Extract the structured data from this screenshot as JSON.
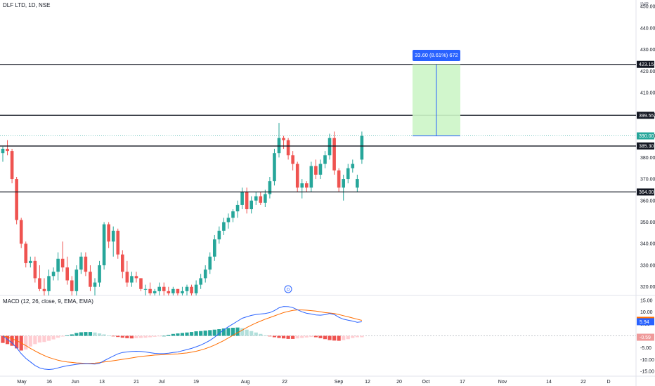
{
  "header": {
    "title": "DLF LTD, 1D, NSE",
    "currency": "INR",
    "macd_title": "MACD (12, 26, close, 9, EMA, EMA)"
  },
  "measure": {
    "label": "33.60 (8.61%) 672",
    "color": "#2962ff",
    "fill": "#ccf5c6",
    "from": 390,
    "to": 423.15
  },
  "colors": {
    "up": "#26a69a",
    "down": "#ef5350",
    "macd": "#2962ff",
    "signal": "#ff6d00",
    "hist_up": "#26a69a",
    "hist_up_light": "#b2dfdb",
    "hist_down": "#ef5350",
    "hist_down_light": "#ffcdd2"
  },
  "chart_data": [
    {
      "type": "candlestick",
      "title": "DLF LTD, 1D, NSE",
      "ylim": [
        316,
        453
      ],
      "y_ticks": [
        320,
        330,
        340,
        350,
        360,
        370,
        380,
        390,
        400,
        410,
        420,
        430,
        440,
        450
      ],
      "x_ticks": [
        "May",
        "16",
        "Jun",
        "13",
        "21",
        "Jul",
        "19",
        "Aug",
        "22",
        "Sep",
        "12",
        "20",
        "Oct",
        "17",
        "Nov",
        "14",
        "22",
        "D"
      ],
      "levels": [
        {
          "value": 423.15,
          "label": "423.15"
        },
        {
          "value": 399.55,
          "label": "399.55"
        },
        {
          "value": 385.3,
          "label": "385.30"
        },
        {
          "value": 364.0,
          "label": "364.00"
        }
      ],
      "last_price": {
        "value": 390.0,
        "label": "390.00"
      },
      "series": [
        {
          "o": 382,
          "h": 385,
          "l": 378,
          "c": 384
        },
        {
          "o": 384,
          "h": 388,
          "l": 381,
          "c": 383
        },
        {
          "o": 383,
          "h": 384,
          "l": 368,
          "c": 370
        },
        {
          "o": 370,
          "h": 371,
          "l": 349,
          "c": 351
        },
        {
          "o": 351,
          "h": 352,
          "l": 338,
          "c": 340
        },
        {
          "o": 340,
          "h": 341,
          "l": 329,
          "c": 331
        },
        {
          "o": 331,
          "h": 334,
          "l": 329,
          "c": 332
        },
        {
          "o": 332,
          "h": 334,
          "l": 322,
          "c": 324
        },
        {
          "o": 324,
          "h": 330,
          "l": 318,
          "c": 319
        },
        {
          "o": 319,
          "h": 324,
          "l": 316,
          "c": 318
        },
        {
          "o": 318,
          "h": 328,
          "l": 316,
          "c": 325
        },
        {
          "o": 325,
          "h": 329,
          "l": 323,
          "c": 327
        },
        {
          "o": 327,
          "h": 336,
          "l": 323,
          "c": 333
        },
        {
          "o": 333,
          "h": 341,
          "l": 327,
          "c": 329
        },
        {
          "o": 329,
          "h": 334,
          "l": 321,
          "c": 323
        },
        {
          "o": 323,
          "h": 325,
          "l": 316,
          "c": 318
        },
        {
          "o": 318,
          "h": 330,
          "l": 316,
          "c": 328
        },
        {
          "o": 328,
          "h": 336,
          "l": 326,
          "c": 334
        },
        {
          "o": 334,
          "h": 336,
          "l": 325,
          "c": 327
        },
        {
          "o": 327,
          "h": 330,
          "l": 318,
          "c": 320
        },
        {
          "o": 320,
          "h": 324,
          "l": 316,
          "c": 322
        },
        {
          "o": 322,
          "h": 332,
          "l": 320,
          "c": 330
        },
        {
          "o": 330,
          "h": 350,
          "l": 328,
          "c": 349
        },
        {
          "o": 349,
          "h": 350,
          "l": 338,
          "c": 341
        },
        {
          "o": 341,
          "h": 348,
          "l": 334,
          "c": 346
        },
        {
          "o": 346,
          "h": 347,
          "l": 333,
          "c": 335
        },
        {
          "o": 335,
          "h": 337,
          "l": 324,
          "c": 327
        },
        {
          "o": 327,
          "h": 332,
          "l": 320,
          "c": 322
        },
        {
          "o": 322,
          "h": 327,
          "l": 320,
          "c": 325
        },
        {
          "o": 325,
          "h": 327,
          "l": 322,
          "c": 324
        },
        {
          "o": 324,
          "h": 324,
          "l": 318,
          "c": 319
        },
        {
          "o": 319,
          "h": 321,
          "l": 316,
          "c": 319
        },
        {
          "o": 319,
          "h": 322,
          "l": 316,
          "c": 317
        },
        {
          "o": 317,
          "h": 319,
          "l": 316,
          "c": 318
        },
        {
          "o": 318,
          "h": 322,
          "l": 316,
          "c": 320
        },
        {
          "o": 320,
          "h": 322,
          "l": 316,
          "c": 318
        },
        {
          "o": 318,
          "h": 320,
          "l": 316,
          "c": 317
        },
        {
          "o": 317,
          "h": 320,
          "l": 316,
          "c": 319
        },
        {
          "o": 319,
          "h": 319,
          "l": 316,
          "c": 317
        },
        {
          "o": 317,
          "h": 320,
          "l": 316,
          "c": 318
        },
        {
          "o": 318,
          "h": 321,
          "l": 316,
          "c": 320
        },
        {
          "o": 320,
          "h": 321,
          "l": 316,
          "c": 317
        },
        {
          "o": 317,
          "h": 323,
          "l": 316,
          "c": 321
        },
        {
          "o": 321,
          "h": 326,
          "l": 319,
          "c": 324
        },
        {
          "o": 324,
          "h": 330,
          "l": 322,
          "c": 328
        },
        {
          "o": 328,
          "h": 336,
          "l": 326,
          "c": 334
        },
        {
          "o": 334,
          "h": 344,
          "l": 332,
          "c": 342
        },
        {
          "o": 342,
          "h": 348,
          "l": 340,
          "c": 346
        },
        {
          "o": 346,
          "h": 352,
          "l": 344,
          "c": 350
        },
        {
          "o": 350,
          "h": 354,
          "l": 347,
          "c": 352
        },
        {
          "o": 352,
          "h": 356,
          "l": 350,
          "c": 355
        },
        {
          "o": 355,
          "h": 360,
          "l": 352,
          "c": 358
        },
        {
          "o": 358,
          "h": 366,
          "l": 356,
          "c": 364
        },
        {
          "o": 364,
          "h": 366,
          "l": 354,
          "c": 356
        },
        {
          "o": 356,
          "h": 362,
          "l": 354,
          "c": 360
        },
        {
          "o": 360,
          "h": 364,
          "l": 358,
          "c": 362
        },
        {
          "o": 362,
          "h": 364,
          "l": 358,
          "c": 359
        },
        {
          "o": 359,
          "h": 365,
          "l": 357,
          "c": 363
        },
        {
          "o": 363,
          "h": 371,
          "l": 361,
          "c": 369
        },
        {
          "o": 369,
          "h": 384,
          "l": 367,
          "c": 382
        },
        {
          "o": 382,
          "h": 396,
          "l": 380,
          "c": 389
        },
        {
          "o": 389,
          "h": 390,
          "l": 384,
          "c": 388
        },
        {
          "o": 388,
          "h": 389,
          "l": 379,
          "c": 381
        },
        {
          "o": 381,
          "h": 383,
          "l": 374,
          "c": 377
        },
        {
          "o": 377,
          "h": 378,
          "l": 364,
          "c": 366
        },
        {
          "o": 366,
          "h": 370,
          "l": 361,
          "c": 368
        },
        {
          "o": 368,
          "h": 369,
          "l": 364,
          "c": 366
        },
        {
          "o": 366,
          "h": 378,
          "l": 364,
          "c": 376
        },
        {
          "o": 376,
          "h": 379,
          "l": 370,
          "c": 372
        },
        {
          "o": 372,
          "h": 379,
          "l": 370,
          "c": 377
        },
        {
          "o": 377,
          "h": 383,
          "l": 375,
          "c": 381
        },
        {
          "o": 381,
          "h": 391,
          "l": 379,
          "c": 389
        },
        {
          "o": 389,
          "h": 392,
          "l": 372,
          "c": 374
        },
        {
          "o": 374,
          "h": 375,
          "l": 364,
          "c": 366
        },
        {
          "o": 366,
          "h": 372,
          "l": 360,
          "c": 370
        },
        {
          "o": 370,
          "h": 377,
          "l": 368,
          "c": 375
        },
        {
          "o": 375,
          "h": 379,
          "l": 373,
          "c": 377
        },
        {
          "o": 366,
          "h": 372,
          "l": 364,
          "c": 370
        },
        {
          "o": 379,
          "h": 392,
          "l": 377,
          "c": 390
        }
      ]
    },
    {
      "type": "macd",
      "title": "MACD (12, 26, close, 9, EMA, EMA)",
      "ylim": [
        -17,
        17
      ],
      "y_ticks": [
        15,
        10,
        5,
        0,
        -5,
        -10,
        -15
      ],
      "value_labels": [
        {
          "value": 6.53,
          "label": "6.53",
          "color": "#ff6d00"
        },
        {
          "value": 5.94,
          "label": "5.94",
          "color": "#2962ff"
        },
        {
          "value": -0.59,
          "label": "-0.59",
          "color": "#ef9a9a"
        }
      ],
      "macd": [
        0.0,
        -1.5,
        -3.0,
        -5.0,
        -7.5,
        -9.5,
        -11.0,
        -12.5,
        -13.5,
        -14.0,
        -14.2,
        -14.0,
        -13.5,
        -13.0,
        -12.6,
        -12.3,
        -12.0,
        -11.8,
        -11.7,
        -11.8,
        -11.9,
        -11.6,
        -10.5,
        -9.5,
        -8.5,
        -7.6,
        -7.0,
        -6.8,
        -6.6,
        -6.5,
        -6.6,
        -6.8,
        -7.1,
        -7.4,
        -7.5,
        -7.5,
        -7.3,
        -7.0,
        -6.8,
        -6.3,
        -5.8,
        -5.3,
        -4.6,
        -3.9,
        -3.0,
        -1.9,
        -0.6,
        1.0,
        2.5,
        3.8,
        5.0,
        6.2,
        7.4,
        8.0,
        8.6,
        9.0,
        9.2,
        9.4,
        9.8,
        10.6,
        11.8,
        12.4,
        12.3,
        11.9,
        11.0,
        10.1,
        9.5,
        9.2,
        8.8,
        8.7,
        8.9,
        9.4,
        9.0,
        7.8,
        7.0,
        6.6,
        6.2,
        5.7,
        5.9
      ],
      "signal": [
        0.0,
        -0.5,
        -1.2,
        -2.0,
        -3.0,
        -4.1,
        -5.3,
        -6.4,
        -7.4,
        -8.3,
        -9.1,
        -9.7,
        -10.3,
        -10.7,
        -11.0,
        -11.2,
        -11.4,
        -11.5,
        -11.6,
        -11.6,
        -11.5,
        -11.3,
        -11.0,
        -10.8,
        -10.5,
        -10.2,
        -9.9,
        -9.6,
        -9.3,
        -9.0,
        -8.7,
        -8.5,
        -8.3,
        -8.1,
        -8.0,
        -7.9,
        -7.8,
        -7.7,
        -7.6,
        -7.4,
        -7.2,
        -6.9,
        -6.5,
        -6.0,
        -5.4,
        -4.7,
        -3.9,
        -3.0,
        -2.0,
        -0.9,
        0.2,
        1.3,
        2.4,
        3.5,
        4.5,
        5.4,
        6.2,
        7.0,
        7.7,
        8.4,
        9.1,
        9.8,
        10.3,
        10.7,
        10.9,
        10.9,
        10.8,
        10.6,
        10.4,
        10.1,
        9.8,
        9.6,
        9.4,
        9.0,
        8.5,
        8.0,
        7.5,
        7.0,
        6.5
      ],
      "histogram": [
        -3.0,
        -3.5,
        -4.2,
        -5.3,
        -6.2,
        -5.8,
        -4.5,
        -3.5,
        -2.8,
        -2.6,
        -2.1,
        -1.5,
        -0.8,
        -0.3,
        0.2,
        0.6,
        1.2,
        1.5,
        1.6,
        1.6,
        1.4,
        1.0,
        0.6,
        0.1,
        -0.2,
        -0.5,
        -0.8,
        -1.0,
        -1.1,
        -1.0,
        -0.9,
        -0.8,
        -0.6,
        -0.4,
        -0.2,
        0.0,
        0.4,
        0.8,
        1.0,
        1.2,
        1.4,
        1.6,
        1.9,
        2.0,
        2.2,
        2.4,
        2.6,
        2.8,
        3.1,
        3.3,
        3.4,
        3.5,
        3.2,
        2.6,
        2.0,
        1.4,
        0.8,
        0.2,
        -0.2,
        -0.6,
        -0.9,
        -1.1,
        -1.3,
        -1.3,
        -1.1,
        -0.9,
        -0.7,
        -0.5,
        -0.6,
        -1.0,
        -1.4,
        -1.8,
        -2.0,
        -2.1,
        -1.8,
        -1.4,
        -0.9,
        -0.6,
        -0.59
      ]
    }
  ]
}
